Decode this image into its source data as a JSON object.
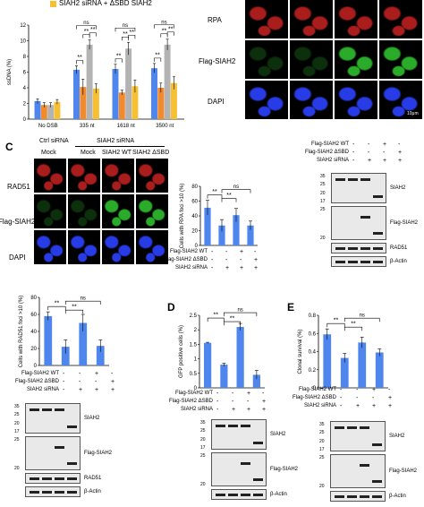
{
  "colors": {
    "blue": "#4f86ee",
    "orange": "#f08a2c",
    "gray": "#b3b3b3",
    "yellow": "#f6c032",
    "rpa_red": "#c82222",
    "siah_green": "#2fbf2f",
    "dapi_blue": "#2b42ff",
    "blot_bg": "#e9e9e9"
  },
  "top_legend": {
    "item": "SIAH2 siRNA + ΔSBD SIAH2"
  },
  "panel_c": {
    "letter": "C",
    "header_ctrl": "Ctrl  siRNA",
    "header_siah2": "SIAH2  siRNA",
    "col_labels": [
      "Mock",
      "Mock",
      "SIAH2 WT",
      "SIAH2 ΔSBD"
    ]
  },
  "panel_d": {
    "letter": "D"
  },
  "panel_e": {
    "letter": "E"
  },
  "microscopy_rows_top": [
    "RPA",
    "Flag-SIAH2",
    "DAPI"
  ],
  "microscopy_rows_c": [
    "RAD51",
    "Flag-SIAH2",
    "DAPI"
  ],
  "scale_bar": "10μm",
  "condition_labels": [
    "Flag-SIAH2 WT",
    "Flag-SIAH2 ΔSBD",
    "SIAH2 siRNA"
  ],
  "condition_signs": [
    [
      "-",
      "-",
      "+",
      "-"
    ],
    [
      "-",
      "-",
      "-",
      "+"
    ],
    [
      "-",
      "+",
      "+",
      "+"
    ]
  ],
  "sig": {
    "double": "**",
    "ns": "ns"
  },
  "blot_labels": {
    "siah2": "SIAH2",
    "flag_siah2": "Flag-SIAH2",
    "rad51": "RAD51",
    "actin": "β-Actin",
    "star": "*"
  },
  "mw_markers": {
    "siah2_blot": [
      "35",
      "25",
      "20",
      "17"
    ],
    "flag_blot": [
      "25",
      "20"
    ]
  },
  "chart_data": [
    {
      "id": "ssdna",
      "type": "bar",
      "ylabel": "ssDNA (%)",
      "ylim": [
        0,
        12
      ],
      "yticks": [
        "0",
        "2",
        "4",
        "6",
        "8",
        "10",
        "12"
      ],
      "categories": [
        "No DSB",
        "335 nt",
        "1618 nt",
        "3500 nt"
      ],
      "series": [
        {
          "color": "#4f86ee",
          "values": [
            2.3,
            6.3,
            6.4,
            6.5
          ],
          "err": [
            0.3,
            0.5,
            0.6,
            0.6
          ]
        },
        {
          "color": "#f08a2c",
          "values": [
            1.8,
            4.1,
            3.4,
            4.0
          ],
          "err": [
            0.3,
            1.0,
            0.3,
            0.6
          ]
        },
        {
          "color": "#b3b3b3",
          "values": [
            1.8,
            9.5,
            9.0,
            9.5
          ],
          "err": [
            0.3,
            0.6,
            0.8,
            0.7
          ]
        },
        {
          "color": "#f6c032",
          "values": [
            2.2,
            3.9,
            4.2,
            4.6
          ],
          "err": [
            0.3,
            0.6,
            0.8,
            0.8
          ]
        }
      ]
    },
    {
      "id": "rpa_foci",
      "type": "bar",
      "ylabel": "Cells with RPA foci >10 (%)",
      "ylim": [
        0,
        80
      ],
      "yticks": [
        "0",
        "20",
        "40",
        "60",
        "80"
      ],
      "values": [
        51,
        27,
        41,
        27
      ],
      "err": [
        10,
        8,
        9,
        6
      ],
      "color": "#4f86ee"
    },
    {
      "id": "rad51_foci",
      "type": "bar",
      "ylabel": "Cells with RAD51 foci >10 (%)",
      "ylim": [
        0,
        80
      ],
      "yticks": [
        "0",
        "20",
        "40",
        "60",
        "80"
      ],
      "values": [
        58,
        22,
        50,
        23
      ],
      "err": [
        5,
        8,
        10,
        7
      ],
      "color": "#4f86ee"
    },
    {
      "id": "gfp",
      "type": "bar",
      "ylabel": "GFP positive cells (%)",
      "ylim": [
        0,
        2.5
      ],
      "yticks": [
        "0",
        "0.5",
        "1",
        "1.5",
        "2",
        "2.5"
      ],
      "values": [
        1.55,
        0.8,
        2.1,
        0.45
      ],
      "err": [
        0.02,
        0.05,
        0.12,
        0.15
      ],
      "color": "#4f86ee"
    },
    {
      "id": "clonal",
      "type": "bar",
      "ylabel": "Clonal survival (%)",
      "ylim": [
        0,
        0.8
      ],
      "yticks": [
        "0",
        "0.2",
        "0.4",
        "0.6",
        "0.8"
      ],
      "values": [
        0.59,
        0.33,
        0.5,
        0.39
      ],
      "err": [
        0.06,
        0.05,
        0.06,
        0.04
      ],
      "color": "#4f86ee"
    }
  ]
}
